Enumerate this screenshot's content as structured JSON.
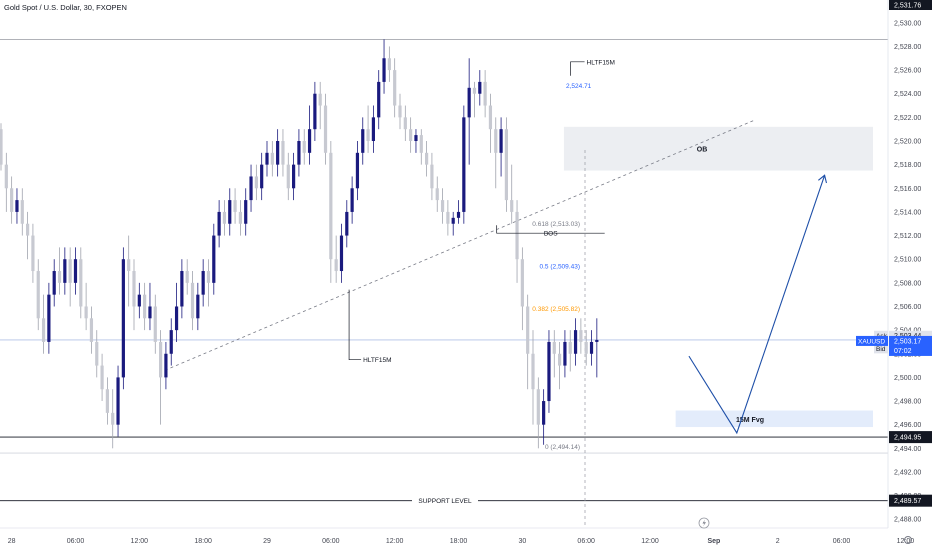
{
  "header": {
    "title": "Gold Spot / U.S. Dollar, 30, FXOPEN"
  },
  "chart_data": {
    "type": "candlestick",
    "ylim": [
      2487.6,
      2532.0
    ],
    "y_ticks": [
      2488,
      2490,
      2492,
      2494,
      2496,
      2498,
      2500,
      2502,
      2504,
      2506,
      2508,
      2510,
      2512,
      2514,
      2516,
      2518,
      2520,
      2522,
      2524,
      2526,
      2528,
      2530
    ],
    "y_tick_labels": [
      "2,488.00",
      "2,490.00",
      "2,492.00",
      "2,494.00",
      "2,496.00",
      "2,498.00",
      "2,500.00",
      "2,502.00",
      "2,504.00",
      "2,506.00",
      "2,508.00",
      "2,510.00",
      "2,512.00",
      "2,514.00",
      "2,516.00",
      "2,518.00",
      "2,520.00",
      "2,522.00",
      "2,524.00",
      "2,526.00",
      "2,528.00",
      "2,530.00"
    ],
    "x_ticks": [
      {
        "bar": 2,
        "label": "28"
      },
      {
        "bar": 14,
        "label": "06:00"
      },
      {
        "bar": 26,
        "label": "12:00"
      },
      {
        "bar": 38,
        "label": "18:00"
      },
      {
        "bar": 50,
        "label": "29"
      },
      {
        "bar": 62,
        "label": "06:00"
      },
      {
        "bar": 74,
        "label": "12:00"
      },
      {
        "bar": 86,
        "label": "18:00"
      },
      {
        "bar": 98,
        "label": "30"
      },
      {
        "bar": 110,
        "label": "06:00"
      },
      {
        "bar": 122,
        "label": "12:00"
      },
      {
        "bar": 134,
        "label": "Sep"
      },
      {
        "bar": 146,
        "label": "2"
      },
      {
        "bar": 158,
        "label": "06:00"
      },
      {
        "bar": 170,
        "label": "12:00"
      }
    ],
    "price_tags": [
      {
        "name": "top",
        "label": "2,531.76",
        "value": 2531.76
      },
      {
        "name": "low",
        "label": "2,494.95",
        "value": 2494.95
      },
      {
        "name": "support",
        "label": "2,489.57",
        "value": 2489.57
      }
    ],
    "quote": {
      "ask_label": "Ask",
      "ask": "2,503.44",
      "bid_label": "Bid",
      "bid": "2,503.22",
      "symbol": "XAUUSD",
      "last": "2,503.17",
      "countdown": "07:02",
      "ask_value": 2503.44,
      "bid_value": 2503.22,
      "last_value": 2503.17
    },
    "levels": {
      "top_line": 2528.6,
      "low_line": 2494.95,
      "support": 2489.57,
      "support_label": "SUPPORT LEVEL",
      "low_faint": 2493.6,
      "current": 2503.17
    },
    "zones": [
      {
        "name": "ob",
        "label": "OB",
        "bar_from": 106,
        "y_top": 2521.2,
        "y_bottom": 2517.5
      },
      {
        "name": "fvg",
        "label": "15M Fvg",
        "bar_from": 127,
        "y_top": 2497.2,
        "y_bottom": 2495.8
      }
    ],
    "fib": [
      {
        "label": "0.618 (2,513.03)",
        "value": 2513.03,
        "color": "#787b86"
      },
      {
        "label": "0.5 (2,509.43)",
        "value": 2509.43,
        "color": "#2962ff"
      },
      {
        "label": "0.382 (2,505.82)",
        "value": 2505.82,
        "color": "#ff9800"
      },
      {
        "label": "0 (2,494.14)",
        "value": 2494.14,
        "color": "#787b86"
      },
      {
        "label": "2,524.71",
        "value": 2524.71,
        "color": "#2962ff"
      }
    ],
    "annotations": [
      {
        "name": "hltf-top",
        "label": "HLTF15M",
        "bar": 108,
        "value": 2526.7
      },
      {
        "name": "hltf-bottom",
        "label": "HLTF15M",
        "bar": 69,
        "value": 2501.5
      },
      {
        "name": "bos",
        "label": "BOS",
        "bar": 99,
        "value": 2512.2
      }
    ],
    "trendline": {
      "from": {
        "bar": 31,
        "value": 2500.6
      },
      "to": {
        "bar": 142,
        "value": 2521.8
      }
    },
    "projection": [
      {
        "bar": 129.5,
        "value": 2501.8
      },
      {
        "bar": 138.5,
        "value": 2495.3
      },
      {
        "bar": 155,
        "value": 2517.1
      }
    ],
    "candles": [
      [
        2521,
        2518,
        2521.5,
        2517.5
      ],
      [
        2518,
        2516,
        2519,
        2514
      ],
      [
        2516,
        2514,
        2517,
        2513
      ],
      [
        2514,
        2515,
        2516,
        2513
      ],
      [
        2515,
        2513,
        2516,
        2512
      ],
      [
        2513,
        2512,
        2514,
        2510
      ],
      [
        2512,
        2509,
        2513,
        2508
      ],
      [
        2509,
        2505,
        2510,
        2504
      ],
      [
        2505,
        2503,
        2507,
        2502
      ],
      [
        2503,
        2507,
        2508,
        2502
      ],
      [
        2507,
        2509,
        2510,
        2506
      ],
      [
        2509,
        2508,
        2511,
        2507
      ],
      [
        2508,
        2510,
        2511,
        2507
      ],
      [
        2510,
        2508,
        2511,
        2506
      ],
      [
        2508,
        2510,
        2511,
        2507
      ],
      [
        2510,
        2506,
        2511,
        2505
      ],
      [
        2506,
        2505,
        2508,
        2504
      ],
      [
        2505,
        2503,
        2506,
        2502
      ],
      [
        2503,
        2501,
        2504,
        2500
      ],
      [
        2501,
        2499,
        2502,
        2498
      ],
      [
        2499,
        2497,
        2500,
        2496
      ],
      [
        2497,
        2496,
        2499,
        2494
      ],
      [
        2496,
        2500,
        2501,
        2495
      ],
      [
        2500,
        2510,
        2511,
        2499
      ],
      [
        2510,
        2509,
        2512,
        2506
      ],
      [
        2509,
        2506,
        2510,
        2504
      ],
      [
        2506,
        2507,
        2508,
        2505
      ],
      [
        2507,
        2505,
        2508,
        2504
      ],
      [
        2505,
        2506,
        2508,
        2504
      ],
      [
        2506,
        2503,
        2507,
        2502
      ],
      [
        2503,
        2500,
        2504,
        2496
      ],
      [
        2500,
        2502,
        2503,
        2499
      ],
      [
        2502,
        2504,
        2505,
        2501
      ],
      [
        2504,
        2506,
        2508,
        2503
      ],
      [
        2506,
        2509,
        2510,
        2505
      ],
      [
        2509,
        2508,
        2510,
        2507
      ],
      [
        2508,
        2505,
        2509,
        2504
      ],
      [
        2505,
        2507,
        2508,
        2504
      ],
      [
        2507,
        2509,
        2510,
        2506
      ],
      [
        2509,
        2508,
        2510,
        2506
      ],
      [
        2508,
        2512,
        2513,
        2507
      ],
      [
        2512,
        2514,
        2515,
        2511
      ],
      [
        2514,
        2513,
        2515,
        2512
      ],
      [
        2513,
        2515,
        2516,
        2512
      ],
      [
        2515,
        2514,
        2516,
        2513
      ],
      [
        2514,
        2513,
        2515,
        2512
      ],
      [
        2513,
        2515,
        2516,
        2512
      ],
      [
        2515,
        2517,
        2518,
        2514
      ],
      [
        2517,
        2516,
        2518,
        2515
      ],
      [
        2516,
        2518,
        2519,
        2515
      ],
      [
        2518,
        2519,
        2520,
        2517
      ],
      [
        2519,
        2518,
        2520,
        2517
      ],
      [
        2518,
        2520,
        2521,
        2517
      ],
      [
        2520,
        2518,
        2521,
        2517
      ],
      [
        2518,
        2516,
        2519,
        2515
      ],
      [
        2516,
        2518,
        2519,
        2515
      ],
      [
        2518,
        2520,
        2521,
        2517
      ],
      [
        2520,
        2519,
        2521,
        2518
      ],
      [
        2519,
        2521,
        2523,
        2518
      ],
      [
        2521,
        2524,
        2525,
        2520
      ],
      [
        2524,
        2523,
        2525,
        2521
      ],
      [
        2523,
        2519,
        2524,
        2518
      ],
      [
        2519,
        2510,
        2520,
        2508
      ],
      [
        2510,
        2509,
        2512,
        2508
      ],
      [
        2509,
        2512,
        2513,
        2508
      ],
      [
        2512,
        2514,
        2515,
        2511
      ],
      [
        2514,
        2516,
        2517,
        2513
      ],
      [
        2516,
        2519,
        2520,
        2515
      ],
      [
        2519,
        2521,
        2522,
        2518
      ],
      [
        2521,
        2520,
        2523,
        2519
      ],
      [
        2520,
        2522,
        2523,
        2519
      ],
      [
        2522,
        2525,
        2526,
        2521
      ],
      [
        2525,
        2527,
        2528.6,
        2524
      ],
      [
        2527,
        2526,
        2528,
        2525
      ],
      [
        2526,
        2523,
        2527,
        2522
      ],
      [
        2523,
        2522,
        2524,
        2521
      ],
      [
        2522,
        2521,
        2523,
        2520
      ],
      [
        2521,
        2520,
        2522,
        2519
      ],
      [
        2520,
        2520.5,
        2521,
        2519
      ],
      [
        2520.5,
        2519,
        2521,
        2518
      ],
      [
        2519,
        2518,
        2520,
        2517
      ],
      [
        2518,
        2516,
        2519,
        2515
      ],
      [
        2516,
        2515,
        2517,
        2514
      ],
      [
        2515,
        2514,
        2516,
        2513
      ],
      [
        2514,
        2513,
        2515,
        2512
      ],
      [
        2513,
        2513.5,
        2514,
        2512
      ],
      [
        2513.5,
        2514,
        2515,
        2513
      ],
      [
        2514,
        2522,
        2523,
        2513
      ],
      [
        2522,
        2524.5,
        2527,
        2518
      ],
      [
        2524.5,
        2524,
        2525,
        2522
      ],
      [
        2524,
        2525,
        2526,
        2523
      ],
      [
        2525,
        2523,
        2526,
        2522
      ],
      [
        2523,
        2521,
        2524,
        2519
      ],
      [
        2521,
        2519,
        2522,
        2516
      ],
      [
        2519,
        2521,
        2522,
        2517
      ],
      [
        2521,
        2515,
        2522,
        2514
      ],
      [
        2515,
        2514,
        2518,
        2513
      ],
      [
        2514,
        2510,
        2515,
        2508
      ],
      [
        2510,
        2506,
        2511,
        2504
      ],
      [
        2506,
        2502,
        2507,
        2499
      ],
      [
        2502,
        2499,
        2504,
        2496
      ],
      [
        2499,
        2496,
        2500,
        2494
      ],
      [
        2496,
        2498,
        2499,
        2494.3
      ],
      [
        2498,
        2503,
        2504,
        2497
      ],
      [
        2503,
        2502,
        2504,
        2500
      ],
      [
        2502,
        2501,
        2503,
        2499
      ],
      [
        2501,
        2503,
        2504,
        2500
      ],
      [
        2503,
        2502,
        2504,
        2500.5
      ],
      [
        2502,
        2504,
        2505,
        2501
      ],
      [
        2504,
        2503,
        2505,
        2502
      ],
      [
        2503,
        2502,
        2504,
        2501
      ],
      [
        2502,
        2503,
        2504,
        2501
      ],
      [
        2503,
        2503.17,
        2505,
        2500
      ]
    ]
  }
}
